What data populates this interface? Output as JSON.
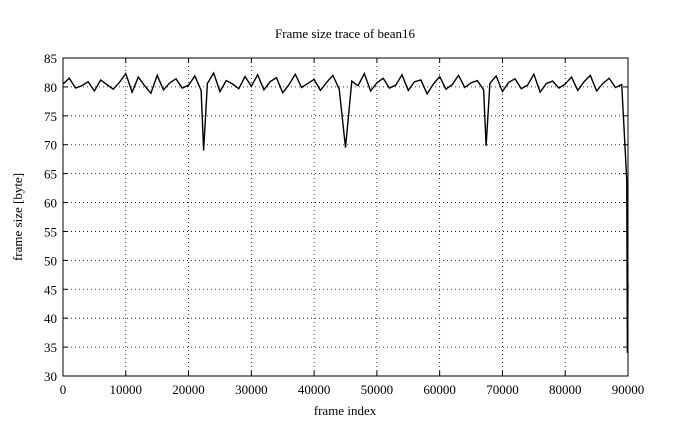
{
  "chart_data": {
    "type": "line",
    "title": "Frame size trace of bean16",
    "x_label": "frame index",
    "y_label": "frame size [byte]",
    "x": [
      0,
      1000,
      2000,
      3000,
      4000,
      5000,
      6000,
      7000,
      8000,
      9000,
      10000,
      11000,
      12000,
      13000,
      14000,
      15000,
      16000,
      17000,
      18000,
      19000,
      20000,
      21000,
      22000,
      22400,
      23000,
      24000,
      25000,
      26000,
      27000,
      28000,
      29000,
      30000,
      31000,
      32000,
      33000,
      34000,
      35000,
      36000,
      37000,
      38000,
      39000,
      40000,
      41000,
      42000,
      43000,
      44000,
      45000,
      46000,
      47000,
      48000,
      49000,
      50000,
      51000,
      52000,
      53000,
      54000,
      55000,
      56000,
      57000,
      58000,
      59000,
      60000,
      61000,
      62000,
      63000,
      64000,
      65000,
      66000,
      67000,
      67400,
      68000,
      69000,
      70000,
      71000,
      72000,
      73000,
      74000,
      75000,
      76000,
      77000,
      78000,
      79000,
      80000,
      81000,
      82000,
      83000,
      84000,
      85000,
      86000,
      87000,
      88000,
      89000,
      89800,
      89900,
      90000
    ],
    "series": [
      {
        "name": "bean16",
        "color": "#000000",
        "values": [
          80.5,
          81.5,
          79.8,
          80.2,
          80.9,
          79.3,
          81.2,
          80.4,
          79.6,
          80.8,
          82.3,
          79.1,
          81.7,
          80.2,
          78.9,
          82.0,
          79.5,
          80.7,
          81.4,
          79.8,
          80.3,
          81.9,
          79.4,
          69,
          80.6,
          82.4,
          79.2,
          81.1,
          80.5,
          79.7,
          81.8,
          80.1,
          82.1,
          79.5,
          80.9,
          81.6,
          79.0,
          80.4,
          82.2,
          79.9,
          80.6,
          81.3,
          79.4,
          80.8,
          82.0,
          79.6,
          69.5,
          81.0,
          80.2,
          82.3,
          79.3,
          80.7,
          81.5,
          79.8,
          80.3,
          82.1,
          79.4,
          80.9,
          81.2,
          78.8,
          80.5,
          81.8,
          79.6,
          80.4,
          82.0,
          79.9,
          80.7,
          81.1,
          79.5,
          69.8,
          80.6,
          81.9,
          79.2,
          80.8,
          81.4,
          79.7,
          80.3,
          82.2,
          79.1,
          80.6,
          81.0,
          79.8,
          80.5,
          81.7,
          79.4,
          80.9,
          82.0,
          79.3,
          80.6,
          81.5,
          79.9,
          80.4,
          64,
          34,
          46
        ]
      }
    ],
    "xlim": [
      0,
      90000
    ],
    "ylim": [
      30,
      85
    ],
    "xticks": [
      0,
      10000,
      20000,
      30000,
      40000,
      50000,
      60000,
      70000,
      80000,
      90000
    ],
    "yticks": [
      30,
      35,
      40,
      45,
      50,
      55,
      60,
      65,
      70,
      75,
      80,
      85
    ],
    "grid": true
  }
}
